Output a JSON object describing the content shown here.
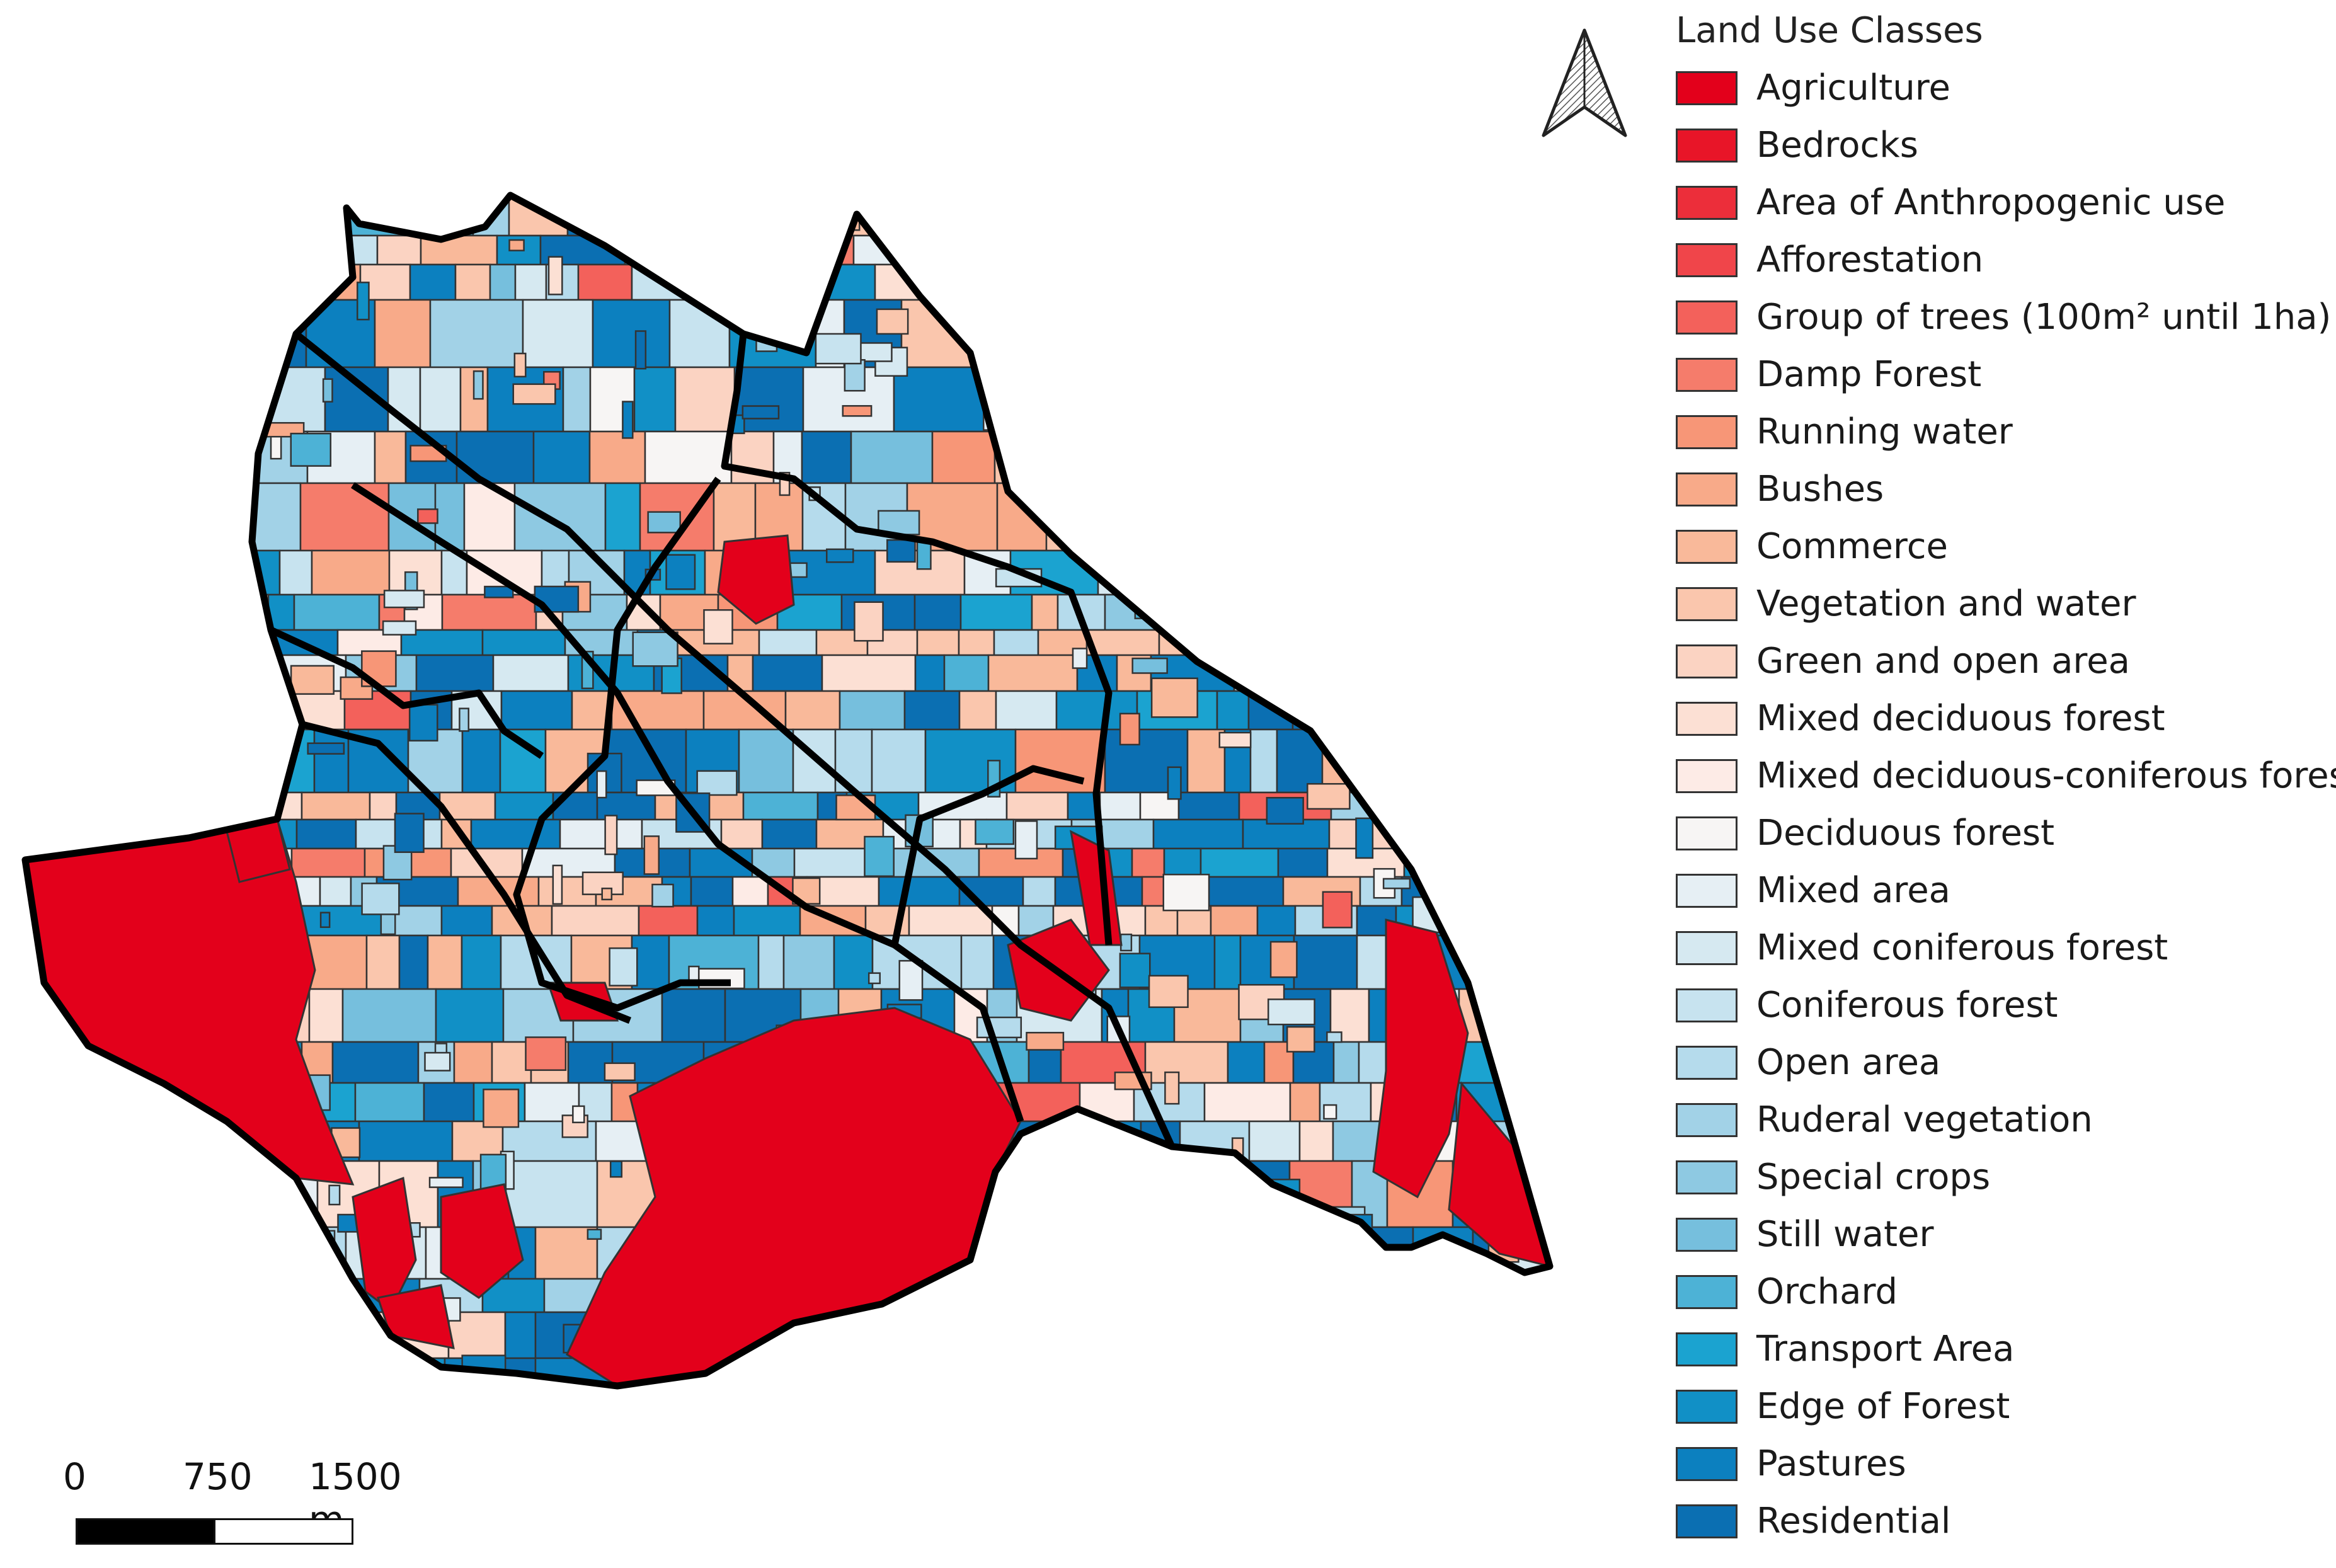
{
  "legend": {
    "title": "Land Use Classes",
    "classes": [
      {
        "label": "Agriculture",
        "color": "#e3001b"
      },
      {
        "label": "Bedrocks",
        "color": "#e81528"
      },
      {
        "label": "Area of Anthropogenic use",
        "color": "#ec2e3a"
      },
      {
        "label": "Afforestation",
        "color": "#f0454a"
      },
      {
        "label": "Group of trees (100m² until 1ha)",
        "color": "#f3615b"
      },
      {
        "label": "Damp Forest",
        "color": "#f57c6b"
      },
      {
        "label": "Running water",
        "color": "#f79677"
      },
      {
        "label": "Bushes",
        "color": "#f8aa89"
      },
      {
        "label": "Commerce",
        "color": "#f9b99a"
      },
      {
        "label": "Vegetation and water",
        "color": "#fac6ad"
      },
      {
        "label": "Green and open area",
        "color": "#fbd3c2"
      },
      {
        "label": "Mixed deciduous forest",
        "color": "#fce0d4"
      },
      {
        "label": "Mixed deciduous-coniferous forest",
        "color": "#fdebe6"
      },
      {
        "label": "Deciduous forest",
        "color": "#f7f5f4"
      },
      {
        "label": "Mixed area",
        "color": "#e6eff4"
      },
      {
        "label": "Mixed coniferous forest",
        "color": "#d6e9f1"
      },
      {
        "label": "Coniferous forest",
        "color": "#c7e3ef"
      },
      {
        "label": "Open area",
        "color": "#b5dbec"
      },
      {
        "label": "Ruderal vegetation",
        "color": "#a2d2e7"
      },
      {
        "label": "Special crops",
        "color": "#8ec9e2"
      },
      {
        "label": "Still water",
        "color": "#76bfdd"
      },
      {
        "label": "Orchard",
        "color": "#4db2d6"
      },
      {
        "label": "Transport Area",
        "color": "#1ba3d0"
      },
      {
        "label": "Edge of Forest",
        "color": "#1190c6"
      },
      {
        "label": "Pastures",
        "color": "#0c80bf"
      },
      {
        "label": "Residential",
        "color": "#0b6fb2"
      }
    ]
  },
  "scale": {
    "ticks": [
      "0",
      "750",
      "1500 m"
    ]
  },
  "north_arrow": {
    "icon": "north-arrow-icon"
  }
}
